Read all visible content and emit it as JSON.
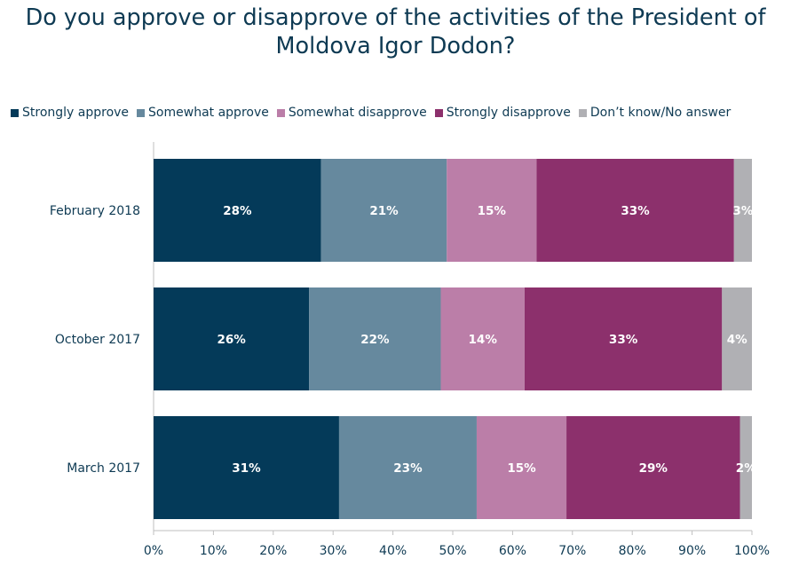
{
  "title_line1": "Do you approve or disapprove of the activities of the President of",
  "title_line2": "Moldova Igor Dodon?",
  "chart_data": {
    "type": "bar",
    "orientation": "horizontal",
    "stacked": true,
    "title": "Do you approve or disapprove of the activities of the President of Moldova Igor Dodon?",
    "categories": [
      "February 2018",
      "October 2017",
      "March 2017"
    ],
    "series": [
      {
        "name": "Strongly approve",
        "color": "#043a59",
        "values": [
          28,
          26,
          31
        ]
      },
      {
        "name": "Somewhat approve",
        "color": "#66899e",
        "values": [
          21,
          22,
          23
        ]
      },
      {
        "name": "Somewhat disapprove",
        "color": "#bb7ea8",
        "values": [
          15,
          14,
          15
        ]
      },
      {
        "name": "Strongly disapprove",
        "color": "#8c306c",
        "values": [
          33,
          33,
          29
        ]
      },
      {
        "name": "Don’t know/No answer",
        "color": "#b0b0b4",
        "values": [
          3,
          4,
          2
        ]
      }
    ],
    "xlim": [
      0,
      100
    ],
    "x_ticks": [
      "0%",
      "10%",
      "20%",
      "30%",
      "40%",
      "50%",
      "60%",
      "70%",
      "80%",
      "90%",
      "100%"
    ],
    "legend_position": "top",
    "grid": false,
    "colors": {
      "text": "#0e3a53",
      "label_text": "#ffffff"
    }
  }
}
